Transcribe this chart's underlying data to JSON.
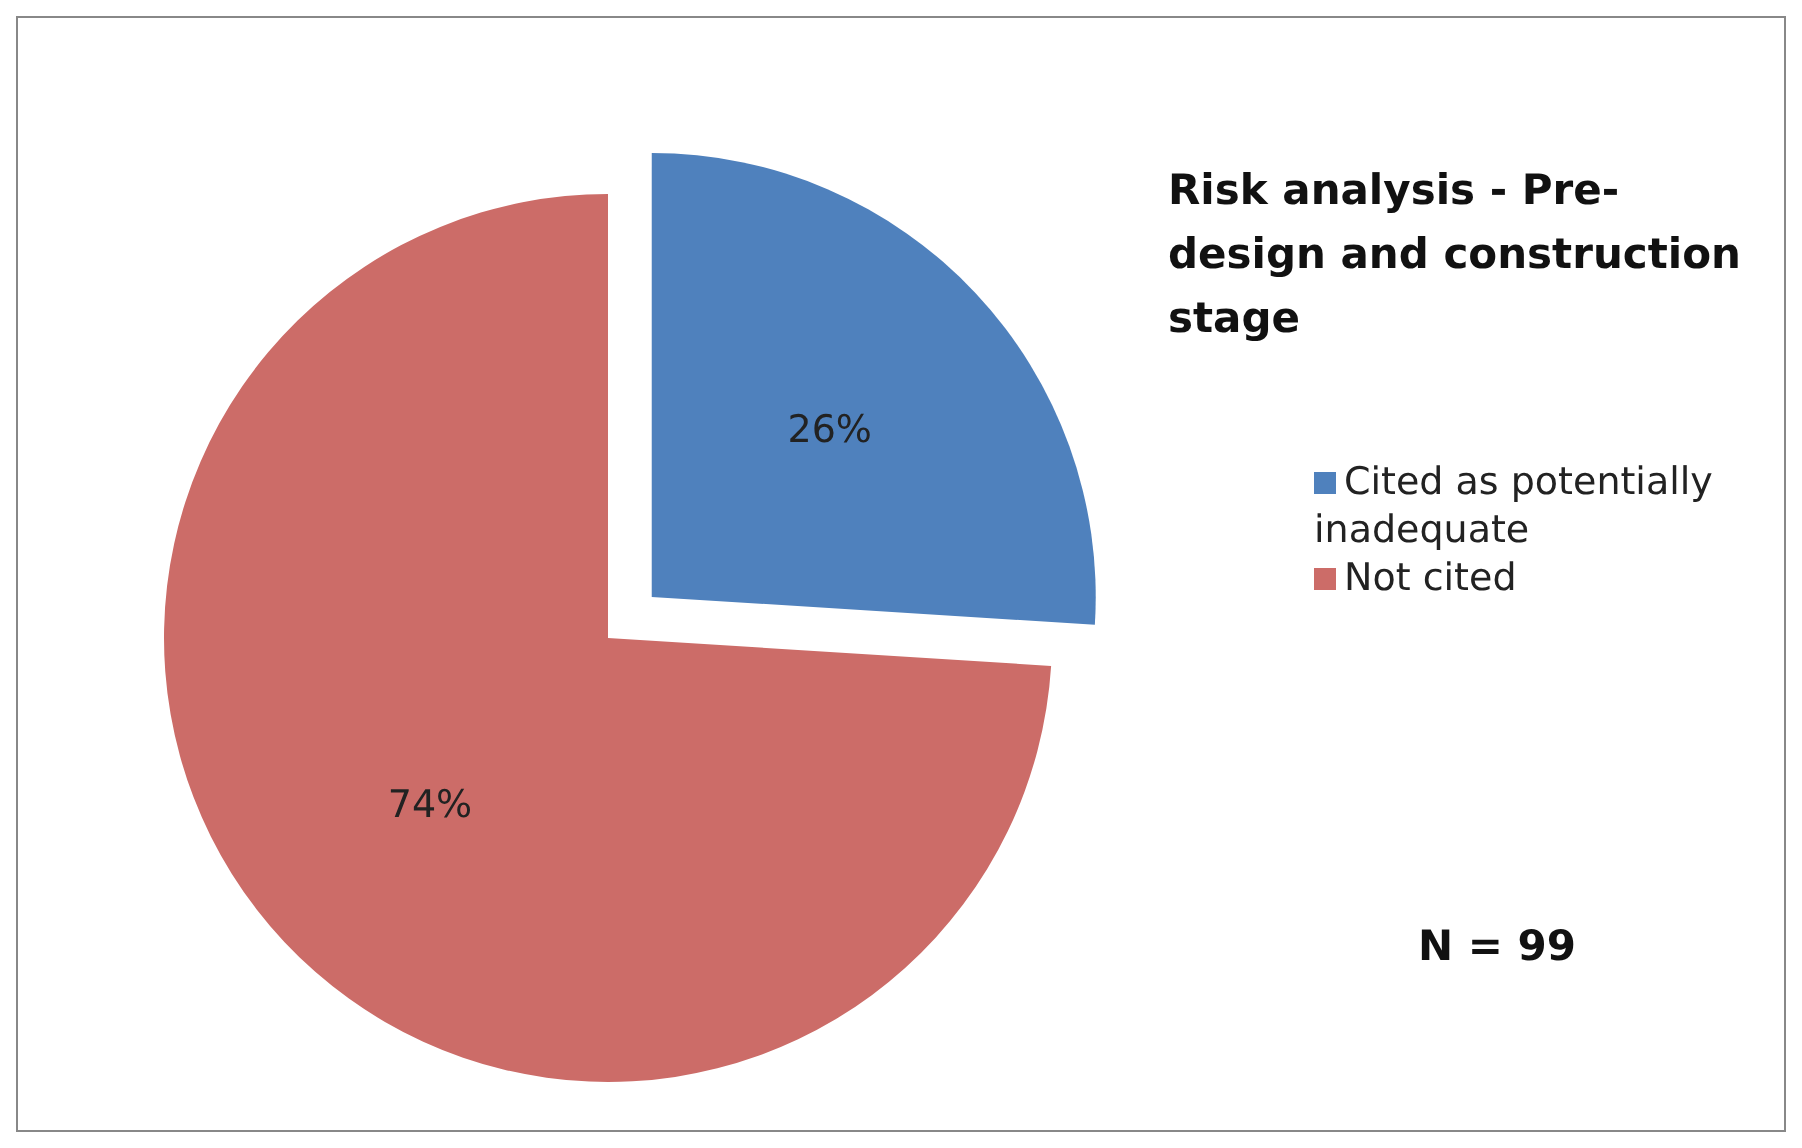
{
  "chart_data": {
    "type": "pie",
    "title": "Risk analysis - Pre-design and construction stage",
    "categories": [
      "Cited as potentially inadequate",
      "Not cited"
    ],
    "values": [
      26,
      74
    ],
    "colors": [
      "#4f81bd",
      "#cc6c68"
    ],
    "value_labels": [
      "26%",
      "74%"
    ],
    "legend": "right",
    "annotations": [
      "N = 99"
    ]
  }
}
